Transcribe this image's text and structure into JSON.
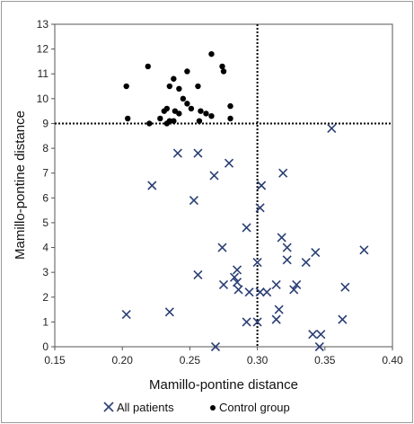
{
  "chart_data": {
    "type": "scatter",
    "title": "",
    "xlabel": "Mamillo-pontine distance",
    "ylabel": "Mamillo-pontine distance",
    "xlim": [
      0.15,
      0.4
    ],
    "ylim": [
      0,
      13
    ],
    "xticks": [
      "0.15",
      "0.20",
      "0.25",
      "0.30",
      "0.35",
      "0.40"
    ],
    "yticks": [
      "0",
      "1",
      "2",
      "3",
      "4",
      "5",
      "6",
      "7",
      "8",
      "9",
      "10",
      "11",
      "12",
      "13"
    ],
    "xtick_values": [
      0.15,
      0.2,
      0.25,
      0.3,
      0.35,
      0.4
    ],
    "ytick_values": [
      0,
      1,
      2,
      3,
      4,
      5,
      6,
      7,
      8,
      9,
      10,
      11,
      12,
      13
    ],
    "grid": false,
    "legend_position": "bottom",
    "reference_lines": [
      {
        "orientation": "vertical",
        "value": 0.3,
        "style": "dotted"
      },
      {
        "orientation": "horizontal",
        "value": 9,
        "style": "dotted"
      }
    ],
    "series": [
      {
        "name": "All patients",
        "marker": "x",
        "color": "#2b3f75",
        "points": [
          [
            0.355,
            8.8
          ],
          [
            0.241,
            7.8
          ],
          [
            0.256,
            7.8
          ],
          [
            0.279,
            7.4
          ],
          [
            0.319,
            7.0
          ],
          [
            0.268,
            6.9
          ],
          [
            0.222,
            6.5
          ],
          [
            0.303,
            6.5
          ],
          [
            0.253,
            5.9
          ],
          [
            0.302,
            5.6
          ],
          [
            0.292,
            4.8
          ],
          [
            0.318,
            4.4
          ],
          [
            0.274,
            4.0
          ],
          [
            0.322,
            4.0
          ],
          [
            0.343,
            3.8
          ],
          [
            0.379,
            3.9
          ],
          [
            0.322,
            3.5
          ],
          [
            0.336,
            3.4
          ],
          [
            0.3,
            3.4
          ],
          [
            0.285,
            3.1
          ],
          [
            0.256,
            2.9
          ],
          [
            0.283,
            2.8
          ],
          [
            0.285,
            2.6
          ],
          [
            0.275,
            2.5
          ],
          [
            0.314,
            2.5
          ],
          [
            0.329,
            2.5
          ],
          [
            0.327,
            2.3
          ],
          [
            0.365,
            2.4
          ],
          [
            0.286,
            2.3
          ],
          [
            0.294,
            2.2
          ],
          [
            0.302,
            2.2
          ],
          [
            0.307,
            2.2
          ],
          [
            0.316,
            1.5
          ],
          [
            0.235,
            1.4
          ],
          [
            0.203,
            1.3
          ],
          [
            0.314,
            1.1
          ],
          [
            0.363,
            1.1
          ],
          [
            0.292,
            1.0
          ],
          [
            0.3,
            1.0
          ],
          [
            0.341,
            0.5
          ],
          [
            0.347,
            0.5
          ],
          [
            0.269,
            0.0
          ],
          [
            0.346,
            0.0
          ]
        ]
      },
      {
        "name": "Control group",
        "marker": "dot",
        "color": "#000000",
        "points": [
          [
            0.266,
            11.8
          ],
          [
            0.219,
            11.3
          ],
          [
            0.274,
            11.3
          ],
          [
            0.275,
            11.1
          ],
          [
            0.248,
            11.1
          ],
          [
            0.238,
            10.8
          ],
          [
            0.203,
            10.5
          ],
          [
            0.235,
            10.5
          ],
          [
            0.242,
            10.4
          ],
          [
            0.256,
            10.5
          ],
          [
            0.245,
            10.0
          ],
          [
            0.248,
            9.8
          ],
          [
            0.251,
            9.6
          ],
          [
            0.28,
            9.7
          ],
          [
            0.231,
            9.5
          ],
          [
            0.233,
            9.6
          ],
          [
            0.239,
            9.5
          ],
          [
            0.242,
            9.4
          ],
          [
            0.258,
            9.5
          ],
          [
            0.262,
            9.4
          ],
          [
            0.266,
            9.3
          ],
          [
            0.228,
            9.2
          ],
          [
            0.28,
            9.2
          ],
          [
            0.204,
            9.2
          ],
          [
            0.233,
            9.0
          ],
          [
            0.235,
            9.1
          ],
          [
            0.238,
            9.1
          ],
          [
            0.257,
            9.1
          ],
          [
            0.22,
            9.0
          ]
        ]
      }
    ]
  }
}
